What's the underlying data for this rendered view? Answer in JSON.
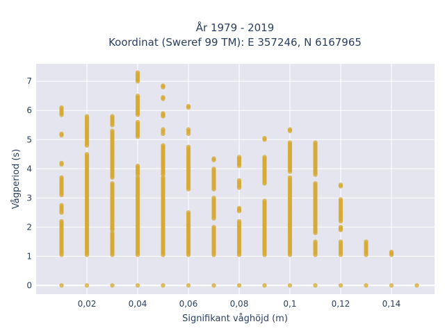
{
  "chart_data": {
    "type": "scatter",
    "title_line1": "År 1979 - 2019",
    "title_line2": "Koordinat (Sweref 99 TM): E 357246, N 6167965",
    "xlabel": "Signifikant våghöjd (m)",
    "ylabel": "Vågperiod (s)",
    "xlim": [
      0.0,
      0.157
    ],
    "ylim": [
      -0.3,
      7.6
    ],
    "x_ticks": [
      0.02,
      0.04,
      0.06,
      0.08,
      0.1,
      0.12,
      0.14
    ],
    "x_tick_labels": [
      "0,02",
      "0,04",
      "0,06",
      "0,08",
      "0,1",
      "0,12",
      "0,14"
    ],
    "y_ticks": [
      0,
      1,
      2,
      3,
      4,
      5,
      6,
      7
    ],
    "y_tick_labels": [
      "0",
      "1",
      "2",
      "3",
      "4",
      "5",
      "6",
      "7"
    ],
    "grid": true,
    "plot_bg": "#e5e5f0",
    "marker_color": "#d4a72c",
    "series": [
      {
        "x": [
          0.01,
          0.02,
          0.03,
          0.04,
          0.05,
          0.06,
          0.07,
          0.08,
          0.09,
          0.1,
          0.11,
          0.12,
          0.13,
          0.14,
          0.15
        ],
        "y_ranges": [
          [
            [
              1.05,
              2.2
            ],
            [
              2.5,
              2.75
            ],
            [
              3.1,
              3.7
            ],
            [
              4.15,
              4.2
            ],
            [
              5.15,
              5.2
            ],
            [
              5.85,
              6.1
            ]
          ],
          [
            [
              1.05,
              4.5
            ],
            [
              4.8,
              5.8
            ]
          ],
          [
            [
              1.05,
              1.8
            ],
            [
              1.9,
              3.5
            ],
            [
              3.7,
              5.3
            ],
            [
              5.5,
              5.8
            ]
          ],
          [
            [
              1.05,
              3.7
            ],
            [
              3.8,
              4.1
            ],
            [
              5.1,
              5.6
            ],
            [
              5.85,
              6.5
            ],
            [
              7.0,
              7.3
            ]
          ],
          [
            [
              1.05,
              3.7
            ],
            [
              3.8,
              4.8
            ],
            [
              5.2,
              5.35
            ],
            [
              5.8,
              5.9
            ],
            [
              6.4,
              6.45
            ],
            [
              6.8,
              6.85
            ]
          ],
          [
            [
              1.05,
              2.5
            ],
            [
              3.3,
              4.75
            ],
            [
              5.2,
              5.35
            ],
            [
              6.1,
              6.15
            ]
          ],
          [
            [
              1.05,
              2.0
            ],
            [
              2.3,
              3.0
            ],
            [
              3.3,
              4.0
            ],
            [
              4.3,
              4.35
            ]
          ],
          [
            [
              1.05,
              2.2
            ],
            [
              2.55,
              2.65
            ],
            [
              3.35,
              3.6
            ],
            [
              4.1,
              4.4
            ]
          ],
          [
            [
              1.05,
              2.9
            ],
            [
              3.5,
              4.4
            ],
            [
              5.0,
              5.05
            ]
          ],
          [
            [
              1.05,
              3.7
            ],
            [
              3.9,
              4.9
            ],
            [
              5.3,
              5.35
            ]
          ],
          [
            [
              1.05,
              1.5
            ],
            [
              1.8,
              3.5
            ],
            [
              3.8,
              4.9
            ]
          ],
          [
            [
              1.05,
              1.5
            ],
            [
              1.9,
              2.0
            ],
            [
              2.2,
              2.95
            ],
            [
              3.4,
              3.45
            ]
          ],
          [
            [
              1.05,
              1.5
            ]
          ],
          [
            [
              1.05,
              1.15
            ]
          ],
          []
        ],
        "y_zero": true
      }
    ]
  }
}
